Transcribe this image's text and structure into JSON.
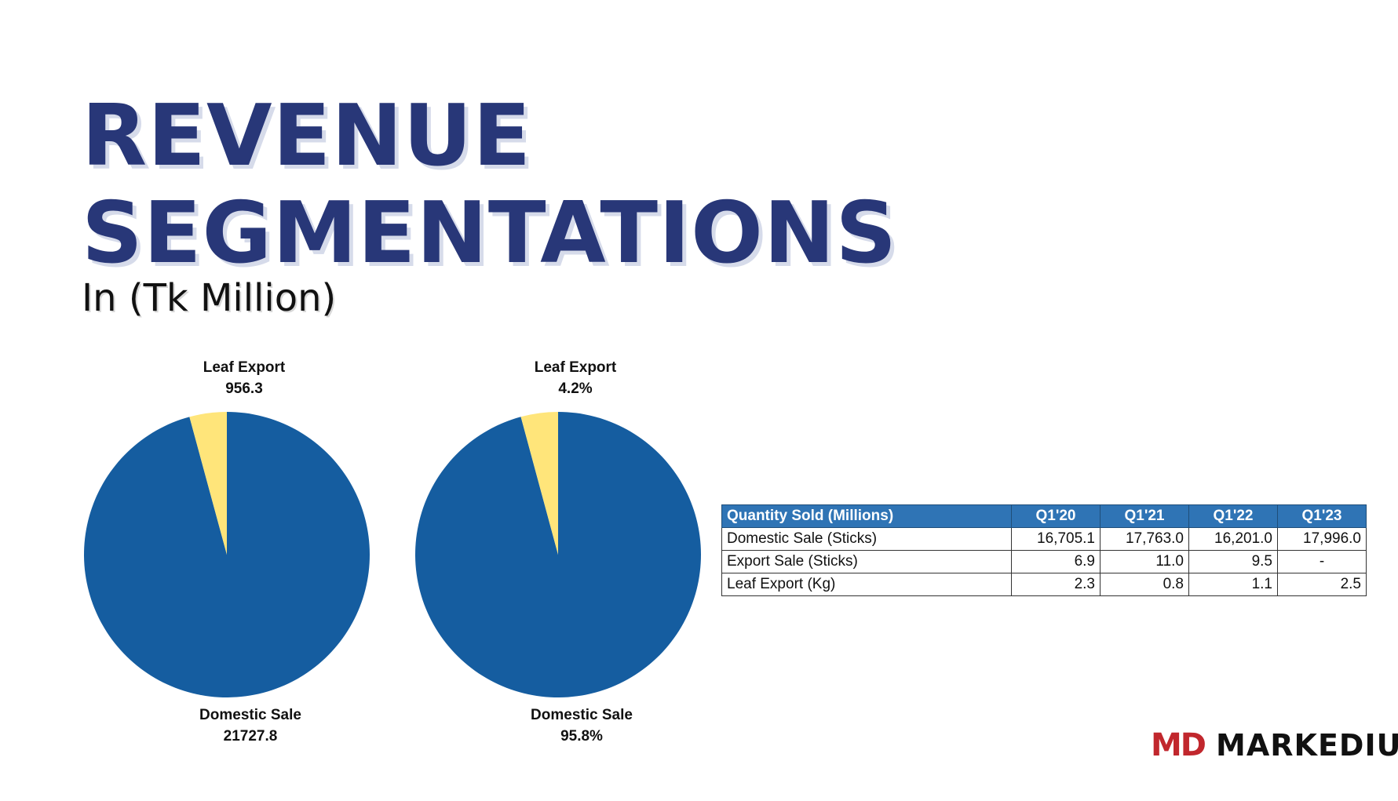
{
  "header": {
    "title_line1": "REVENUE",
    "title_line2": "SEGMENTATIONS",
    "subtitle": "In (Tk Million)"
  },
  "chart_data": [
    {
      "type": "pie",
      "slices": [
        {
          "label": "Leaf Export",
          "value_label": "956.3",
          "value": 956.3,
          "color": "#ffe57a"
        },
        {
          "label": "Domestic Sale",
          "value_label": "21727.8",
          "value": 21727.8,
          "color": "#155da0"
        }
      ]
    },
    {
      "type": "pie",
      "slices": [
        {
          "label": "Leaf Export",
          "value_label": "4.2%",
          "value": 4.2,
          "color": "#ffe57a"
        },
        {
          "label": "Domestic Sale",
          "value_label": "95.8%",
          "value": 95.8,
          "color": "#155da0"
        }
      ]
    }
  ],
  "table": {
    "headers": [
      "Quantity Sold (Millions)",
      "Q1'20",
      "Q1'21",
      "Q1'22",
      "Q1'23"
    ],
    "rows": [
      [
        "Domestic Sale (Sticks)",
        "16,705.1",
        "17,763.0",
        "16,201.0",
        "17,996.0"
      ],
      [
        "Export Sale (Sticks)",
        "6.9",
        "11.0",
        "9.5",
        "-"
      ],
      [
        "Leaf Export (Kg)",
        "2.3",
        "0.8",
        "1.1",
        "2.5"
      ]
    ]
  },
  "logo": {
    "mark": "MD",
    "wordmark": "MARKEDIUM"
  }
}
